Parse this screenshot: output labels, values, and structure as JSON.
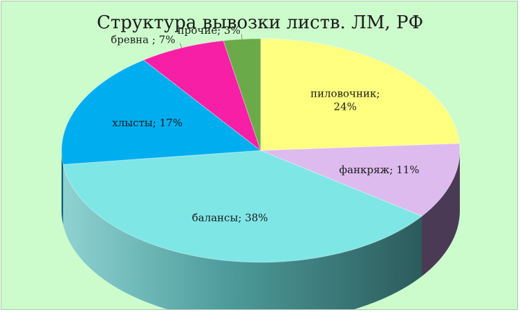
{
  "chart_data": {
    "type": "pie",
    "title": "Структура вывозки листв. ЛМ, РФ",
    "slices": [
      {
        "label": "пиловочник",
        "value": 24,
        "display": [
          "пиловочник;",
          "24%"
        ],
        "color": "#ffff80",
        "side": "#a8a850"
      },
      {
        "label": "фанкряж",
        "value": 11,
        "display": [
          "фанкряж; 11%"
        ],
        "color": "#ddbbee",
        "side": "#4a3a55"
      },
      {
        "label": "балансы",
        "value": 38,
        "display": [
          "балансы; 38%"
        ],
        "color": "#7fe6e6",
        "side": "#3f8585"
      },
      {
        "label": "хлысты",
        "value": 17,
        "display": [
          "хлысты; 17%"
        ],
        "color": "#00aeef",
        "side": "#0a5b80"
      },
      {
        "label": "бревна",
        "value": 7,
        "display": [
          "бревна ; 7%"
        ],
        "color": "#f71fa5",
        "side": "#8a1060"
      },
      {
        "label": "прочие",
        "value": 3,
        "display": [
          "прочие; 3%"
        ],
        "color": "#6aaa48",
        "side": "#3a6a28"
      }
    ],
    "legend": "none",
    "style": "3d"
  }
}
